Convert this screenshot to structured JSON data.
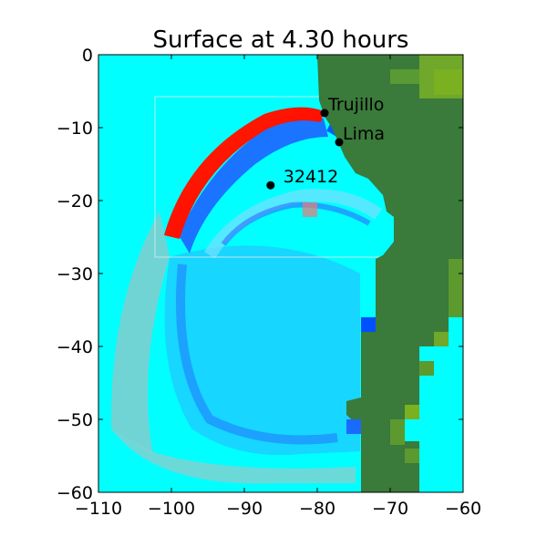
{
  "chart_data": {
    "type": "heatmap",
    "title": "Surface at 4.30 hours",
    "xlim": [
      -110,
      -60
    ],
    "ylim": [
      -60,
      0
    ],
    "x_ticks": [
      -110,
      -100,
      -90,
      -80,
      -70,
      -60
    ],
    "y_ticks": [
      0,
      -10,
      -20,
      -30,
      -40,
      -50,
      -60
    ],
    "x_tick_labels": [
      "−110",
      "−100",
      "−90",
      "−80",
      "−70",
      "−60"
    ],
    "y_tick_labels": [
      "0",
      "−10",
      "−20",
      "−30",
      "−40",
      "−50",
      "−60"
    ],
    "xlabel": "",
    "ylabel": "",
    "grid": false,
    "markers": [
      {
        "name": "Trujillo",
        "x": -79.0,
        "y": -8.0
      },
      {
        "name": "Lima",
        "x": -77.0,
        "y": -12.0
      },
      {
        "name": "32412",
        "x": -86.4,
        "y": -17.9
      }
    ],
    "colors": {
      "water": "#00ffff",
      "land": "#3a7a3a",
      "land_light": "#6fa82a",
      "wave_crest": "#ff1a00",
      "wave_trough": "#0033ff",
      "mid_blue": "#33a6ff",
      "pale_blue": "#66d9ff",
      "grey_band": "#77c4c4"
    }
  }
}
